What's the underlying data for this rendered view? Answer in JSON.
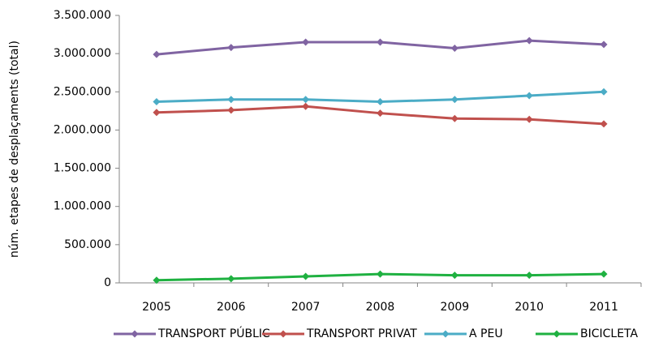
{
  "chart_data": {
    "type": "line",
    "y_label": "núm. etapes de desplaçaments (total)",
    "categories": [
      "2005",
      "2006",
      "2007",
      "2008",
      "2009",
      "2010",
      "2011"
    ],
    "series": [
      {
        "name": "TRANSPORT PÚBLIC",
        "color": "#8064a2",
        "values": [
          2990000,
          3080000,
          3150000,
          3150000,
          3070000,
          3170000,
          3120000
        ]
      },
      {
        "name": "TRANSPORT PRIVAT",
        "color": "#c0504d",
        "values": [
          2230000,
          2260000,
          2310000,
          2220000,
          2150000,
          2140000,
          2080000
        ]
      },
      {
        "name": "A PEU",
        "color": "#4bacc6",
        "values": [
          2370000,
          2400000,
          2400000,
          2370000,
          2400000,
          2450000,
          2500000
        ]
      },
      {
        "name": "BICICLETA",
        "color": "#1fb141",
        "values": [
          35000,
          55000,
          85000,
          115000,
          100000,
          100000,
          115000
        ]
      }
    ],
    "ylim": [
      0,
      3500000
    ],
    "yticks": [
      0,
      {
        "value": 500000,
        "label": "500.000"
      },
      {
        "value": 1000000,
        "label": "1.000.000"
      },
      {
        "value": 1500000,
        "label": "1.500.000"
      },
      {
        "value": 2000000,
        "label": "2.000.000"
      },
      {
        "value": 2500000,
        "label": "2.500.000"
      },
      {
        "value": 3000000,
        "label": "3.000.000"
      },
      {
        "value": 3500000,
        "label": "3.500.000"
      }
    ],
    "grid": false,
    "legend": "bottom"
  }
}
